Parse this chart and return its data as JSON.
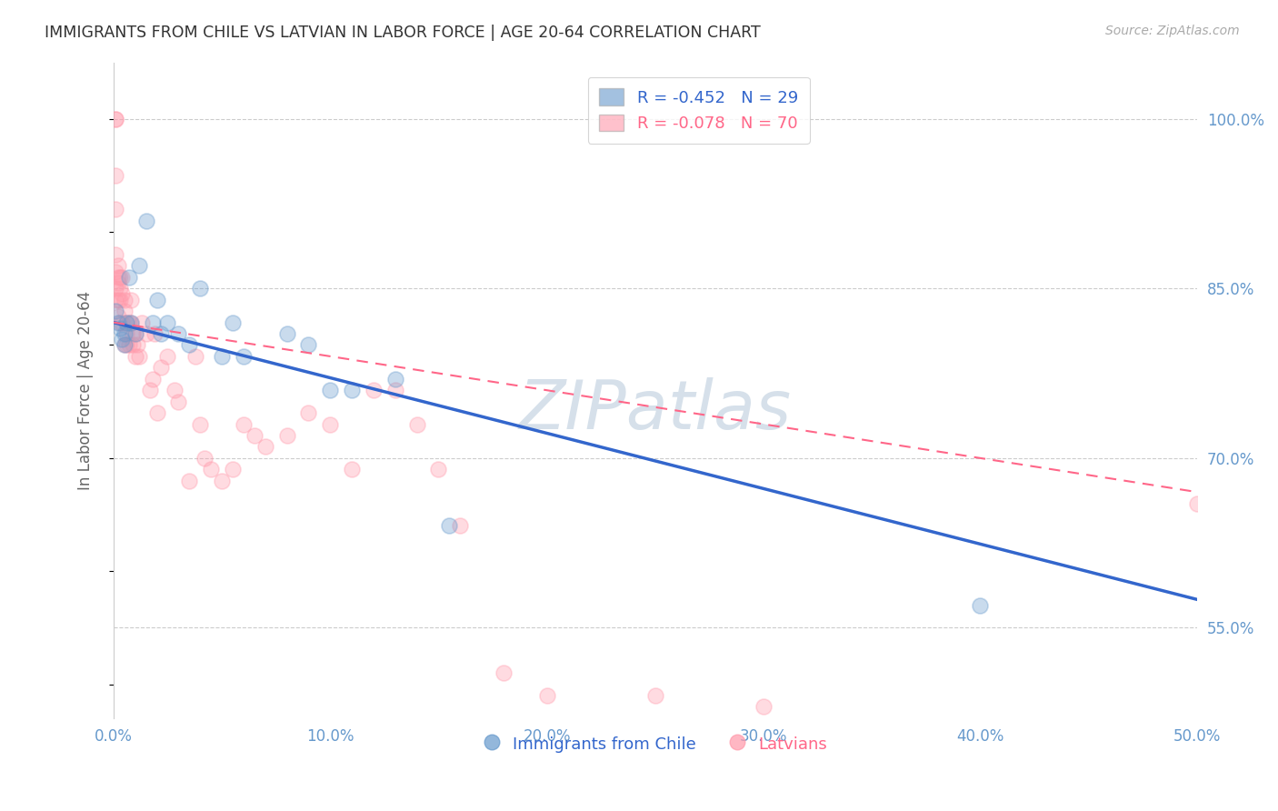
{
  "title": "IMMIGRANTS FROM CHILE VS LATVIAN IN LABOR FORCE | AGE 20-64 CORRELATION CHART",
  "source": "Source: ZipAtlas.com",
  "xlabel_ticks": [
    0.0,
    0.1,
    0.2,
    0.3,
    0.4,
    0.5
  ],
  "xlabel_tick_labels": [
    "0.0%",
    "10.0%",
    "20.0%",
    "30.0%",
    "40.0%",
    "50.0%"
  ],
  "ylabel_right_ticks": [
    0.55,
    0.7,
    0.85,
    1.0
  ],
  "ylabel_right_labels": [
    "55.0%",
    "70.0%",
    "85.0%",
    "100.0%"
  ],
  "ylabel_left": "In Labor Force | Age 20-64",
  "watermark": "ZIPatlas",
  "legend_blue_r": "R = -0.452",
  "legend_blue_n": "N = 29",
  "legend_pink_r": "R = -0.078",
  "legend_pink_n": "N = 70",
  "blue_color": "#6699CC",
  "pink_color": "#FF99AA",
  "blue_line_color": "#3366CC",
  "pink_line_color": "#FF6688",
  "watermark_color": "#BBCCDD",
  "background_color": "#FFFFFF",
  "grid_color": "#CCCCCC",
  "title_color": "#333333",
  "axis_label_color": "#6699CC",
  "source_color": "#999999",
  "xlim": [
    0.0,
    0.5
  ],
  "ylim": [
    0.47,
    1.05
  ],
  "blue_x": [
    0.001,
    0.002,
    0.003,
    0.004,
    0.005,
    0.005,
    0.006,
    0.007,
    0.008,
    0.01,
    0.012,
    0.015,
    0.018,
    0.02,
    0.022,
    0.025,
    0.03,
    0.035,
    0.04,
    0.05,
    0.055,
    0.06,
    0.08,
    0.09,
    0.1,
    0.11,
    0.13,
    0.155,
    0.4
  ],
  "blue_y": [
    0.83,
    0.82,
    0.815,
    0.805,
    0.81,
    0.8,
    0.82,
    0.86,
    0.82,
    0.81,
    0.87,
    0.91,
    0.82,
    0.84,
    0.81,
    0.82,
    0.81,
    0.8,
    0.85,
    0.79,
    0.82,
    0.79,
    0.81,
    0.8,
    0.76,
    0.76,
    0.77,
    0.64,
    0.57
  ],
  "pink_x": [
    0.001,
    0.001,
    0.001,
    0.001,
    0.001,
    0.001,
    0.001,
    0.001,
    0.002,
    0.002,
    0.002,
    0.002,
    0.002,
    0.003,
    0.003,
    0.003,
    0.003,
    0.004,
    0.004,
    0.004,
    0.005,
    0.005,
    0.005,
    0.006,
    0.006,
    0.006,
    0.007,
    0.007,
    0.008,
    0.008,
    0.009,
    0.009,
    0.01,
    0.01,
    0.011,
    0.012,
    0.013,
    0.015,
    0.017,
    0.018,
    0.019,
    0.02,
    0.022,
    0.025,
    0.028,
    0.03,
    0.035,
    0.038,
    0.04,
    0.042,
    0.045,
    0.05,
    0.055,
    0.06,
    0.065,
    0.07,
    0.08,
    0.09,
    0.1,
    0.11,
    0.12,
    0.13,
    0.14,
    0.15,
    0.16,
    0.18,
    0.2,
    0.25,
    0.3,
    0.5
  ],
  "pink_y": [
    1.0,
    1.0,
    0.95,
    0.92,
    0.88,
    0.865,
    0.85,
    0.84,
    0.87,
    0.86,
    0.855,
    0.84,
    0.825,
    0.86,
    0.85,
    0.84,
    0.82,
    0.86,
    0.845,
    0.82,
    0.84,
    0.83,
    0.8,
    0.82,
    0.81,
    0.8,
    0.82,
    0.8,
    0.84,
    0.82,
    0.81,
    0.8,
    0.81,
    0.79,
    0.8,
    0.79,
    0.82,
    0.81,
    0.76,
    0.77,
    0.81,
    0.74,
    0.78,
    0.79,
    0.76,
    0.75,
    0.68,
    0.79,
    0.73,
    0.7,
    0.69,
    0.68,
    0.69,
    0.73,
    0.72,
    0.71,
    0.72,
    0.74,
    0.73,
    0.69,
    0.76,
    0.76,
    0.73,
    0.69,
    0.64,
    0.51,
    0.49,
    0.49,
    0.48,
    0.66
  ]
}
